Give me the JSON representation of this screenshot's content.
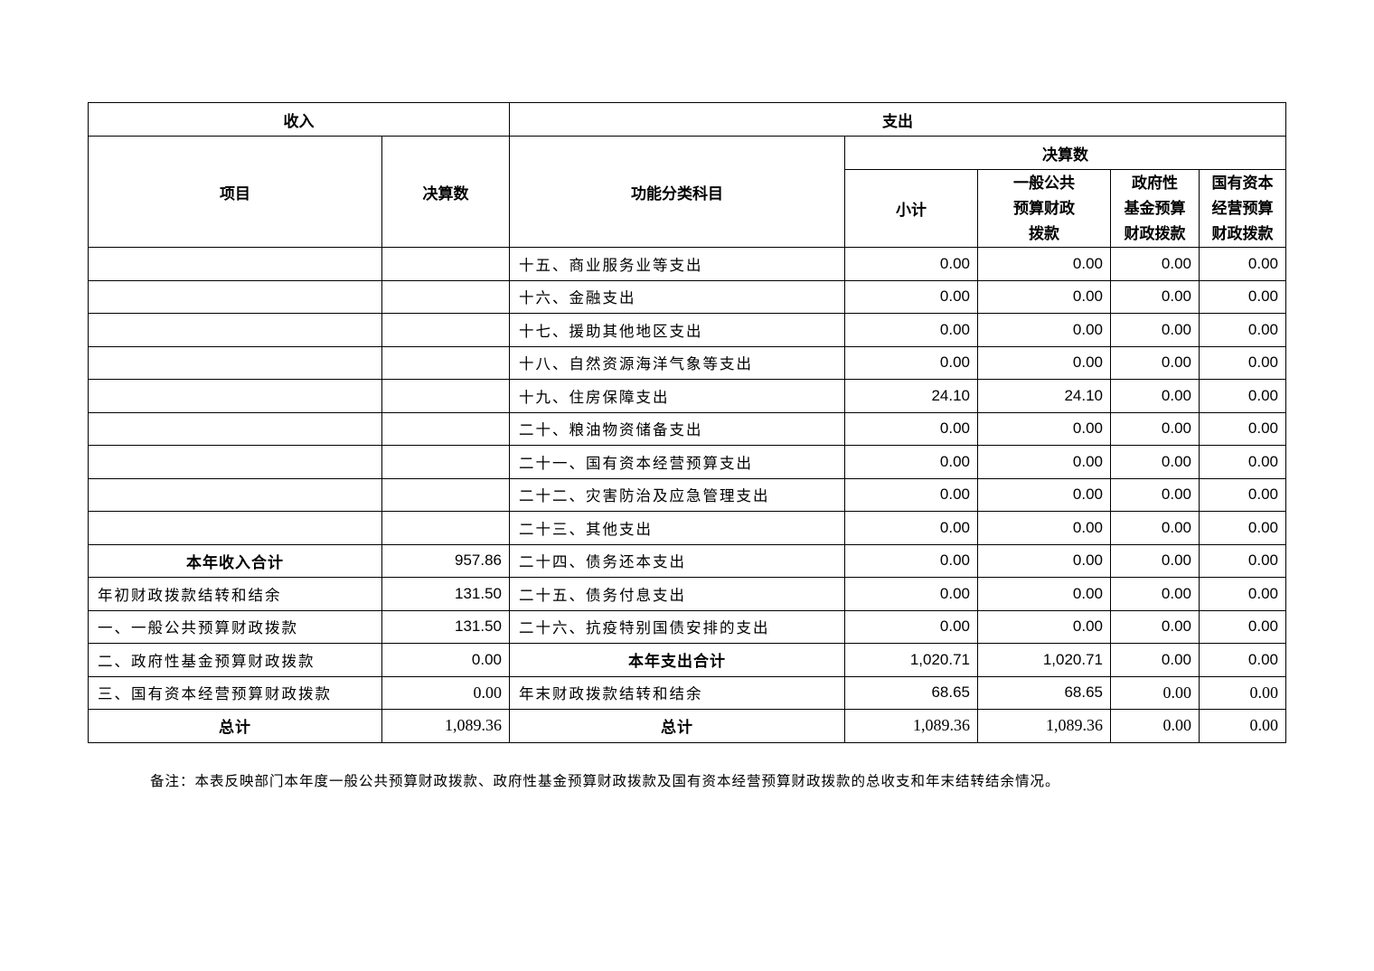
{
  "header": {
    "income": "收入",
    "expense": "支出",
    "item": "项目",
    "final_amount": "决算数",
    "function_category": "功能分类科目",
    "final_amount_group": "决算数",
    "subtotal": "小计",
    "general_public": [
      "一般公共",
      "预算财政",
      "拨款"
    ],
    "gov_fund": [
      "政府性",
      "基金预算",
      "财政拨款"
    ],
    "state_capital": [
      "国有资本",
      "经营预算",
      "财政拨款"
    ]
  },
  "rows": [
    {
      "income_label": "",
      "income_value": "",
      "expense_label": "十五、商业服务业等支出",
      "values": [
        "0.00",
        "0.00",
        "0.00",
        "0.00"
      ]
    },
    {
      "income_label": "",
      "income_value": "",
      "expense_label": "十六、金融支出",
      "values": [
        "0.00",
        "0.00",
        "0.00",
        "0.00"
      ]
    },
    {
      "income_label": "",
      "income_value": "",
      "expense_label": "十七、援助其他地区支出",
      "values": [
        "0.00",
        "0.00",
        "0.00",
        "0.00"
      ]
    },
    {
      "income_label": "",
      "income_value": "",
      "expense_label": "十八、自然资源海洋气象等支出",
      "values": [
        "0.00",
        "0.00",
        "0.00",
        "0.00"
      ]
    },
    {
      "income_label": "",
      "income_value": "",
      "expense_label": "十九、住房保障支出",
      "values": [
        "24.10",
        "24.10",
        "0.00",
        "0.00"
      ]
    },
    {
      "income_label": "",
      "income_value": "",
      "expense_label": "二十、粮油物资储备支出",
      "values": [
        "0.00",
        "0.00",
        "0.00",
        "0.00"
      ]
    },
    {
      "income_label": "",
      "income_value": "",
      "expense_label": "二十一、国有资本经营预算支出",
      "values": [
        "0.00",
        "0.00",
        "0.00",
        "0.00"
      ]
    },
    {
      "income_label": "",
      "income_value": "",
      "expense_label": "二十二、灾害防治及应急管理支出",
      "values": [
        "0.00",
        "0.00",
        "0.00",
        "0.00"
      ]
    },
    {
      "income_label": "",
      "income_value": "",
      "expense_label": "二十三、其他支出",
      "values": [
        "0.00",
        "0.00",
        "0.00",
        "0.00"
      ]
    },
    {
      "income_label": "本年收入合计",
      "income_value": "957.86",
      "expense_label": "二十四、债务还本支出",
      "values": [
        "0.00",
        "0.00",
        "0.00",
        "0.00"
      ]
    },
    {
      "income_label": "年初财政拨款结转和结余",
      "income_value": "131.50",
      "expense_label": "二十五、债务付息支出",
      "values": [
        "0.00",
        "0.00",
        "0.00",
        "0.00"
      ]
    },
    {
      "income_label": "一、一般公共预算财政拨款",
      "income_value": "131.50",
      "expense_label": "二十六、抗疫特别国债安排的支出",
      "values": [
        "0.00",
        "0.00",
        "0.00",
        "0.00"
      ]
    },
    {
      "income_label": "二、政府性基金预算财政拨款",
      "income_value": "0.00",
      "expense_label": "本年支出合计",
      "values": [
        "1,020.71",
        "1,020.71",
        "0.00",
        "0.00"
      ]
    },
    {
      "income_label": "三、国有资本经营预算财政拨款",
      "income_value": "0.00",
      "expense_label": "年末财政拨款结转和结余",
      "values": [
        "68.65",
        "68.65",
        "0.00",
        "0.00"
      ]
    },
    {
      "income_label": "总计",
      "income_value": "1,089.36",
      "expense_label": "总计",
      "values": [
        "1,089.36",
        "1,089.36",
        "0.00",
        "0.00"
      ]
    }
  ],
  "note": "备注：本表反映部门本年度一般公共预算财政拨款、政府性基金预算财政拨款及国有资本经营预算财政拨款的总收支和年末结转结余情况。"
}
